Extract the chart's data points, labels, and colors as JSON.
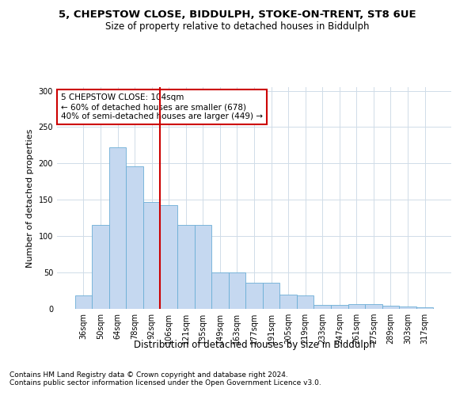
{
  "title1": "5, CHEPSTOW CLOSE, BIDDULPH, STOKE-ON-TRENT, ST8 6UE",
  "title2": "Size of property relative to detached houses in Biddulph",
  "xlabel": "Distribution of detached houses by size in Biddulph",
  "ylabel": "Number of detached properties",
  "categories": [
    "36sqm",
    "50sqm",
    "64sqm",
    "78sqm",
    "92sqm",
    "106sqm",
    "121sqm",
    "135sqm",
    "149sqm",
    "163sqm",
    "177sqm",
    "191sqm",
    "205sqm",
    "219sqm",
    "233sqm",
    "247sqm",
    "261sqm",
    "275sqm",
    "289sqm",
    "303sqm",
    "317sqm"
  ],
  "values": [
    18,
    115,
    222,
    196,
    147,
    143,
    116,
    115,
    50,
    50,
    36,
    36,
    20,
    18,
    5,
    5,
    7,
    7,
    4,
    3,
    2
  ],
  "bar_color": "#c5d8f0",
  "bar_edge_color": "#6baed6",
  "vline_x": 5,
  "vline_color": "#cc0000",
  "annotation_text": "5 CHEPSTOW CLOSE: 104sqm\n← 60% of detached houses are smaller (678)\n40% of semi-detached houses are larger (449) →",
  "annotation_box_color": "#cc0000",
  "ylim": [
    0,
    305
  ],
  "yticks": [
    0,
    50,
    100,
    150,
    200,
    250,
    300
  ],
  "footer1": "Contains HM Land Registry data © Crown copyright and database right 2024.",
  "footer2": "Contains public sector information licensed under the Open Government Licence v3.0.",
  "bg_color": "#ffffff",
  "plot_bg_color": "#ffffff",
  "grid_color": "#d0dce8",
  "title1_fontsize": 9.5,
  "title2_fontsize": 8.5,
  "xlabel_fontsize": 8.5,
  "ylabel_fontsize": 8,
  "footer_fontsize": 6.5,
  "tick_fontsize": 7,
  "ann_fontsize": 7.5
}
